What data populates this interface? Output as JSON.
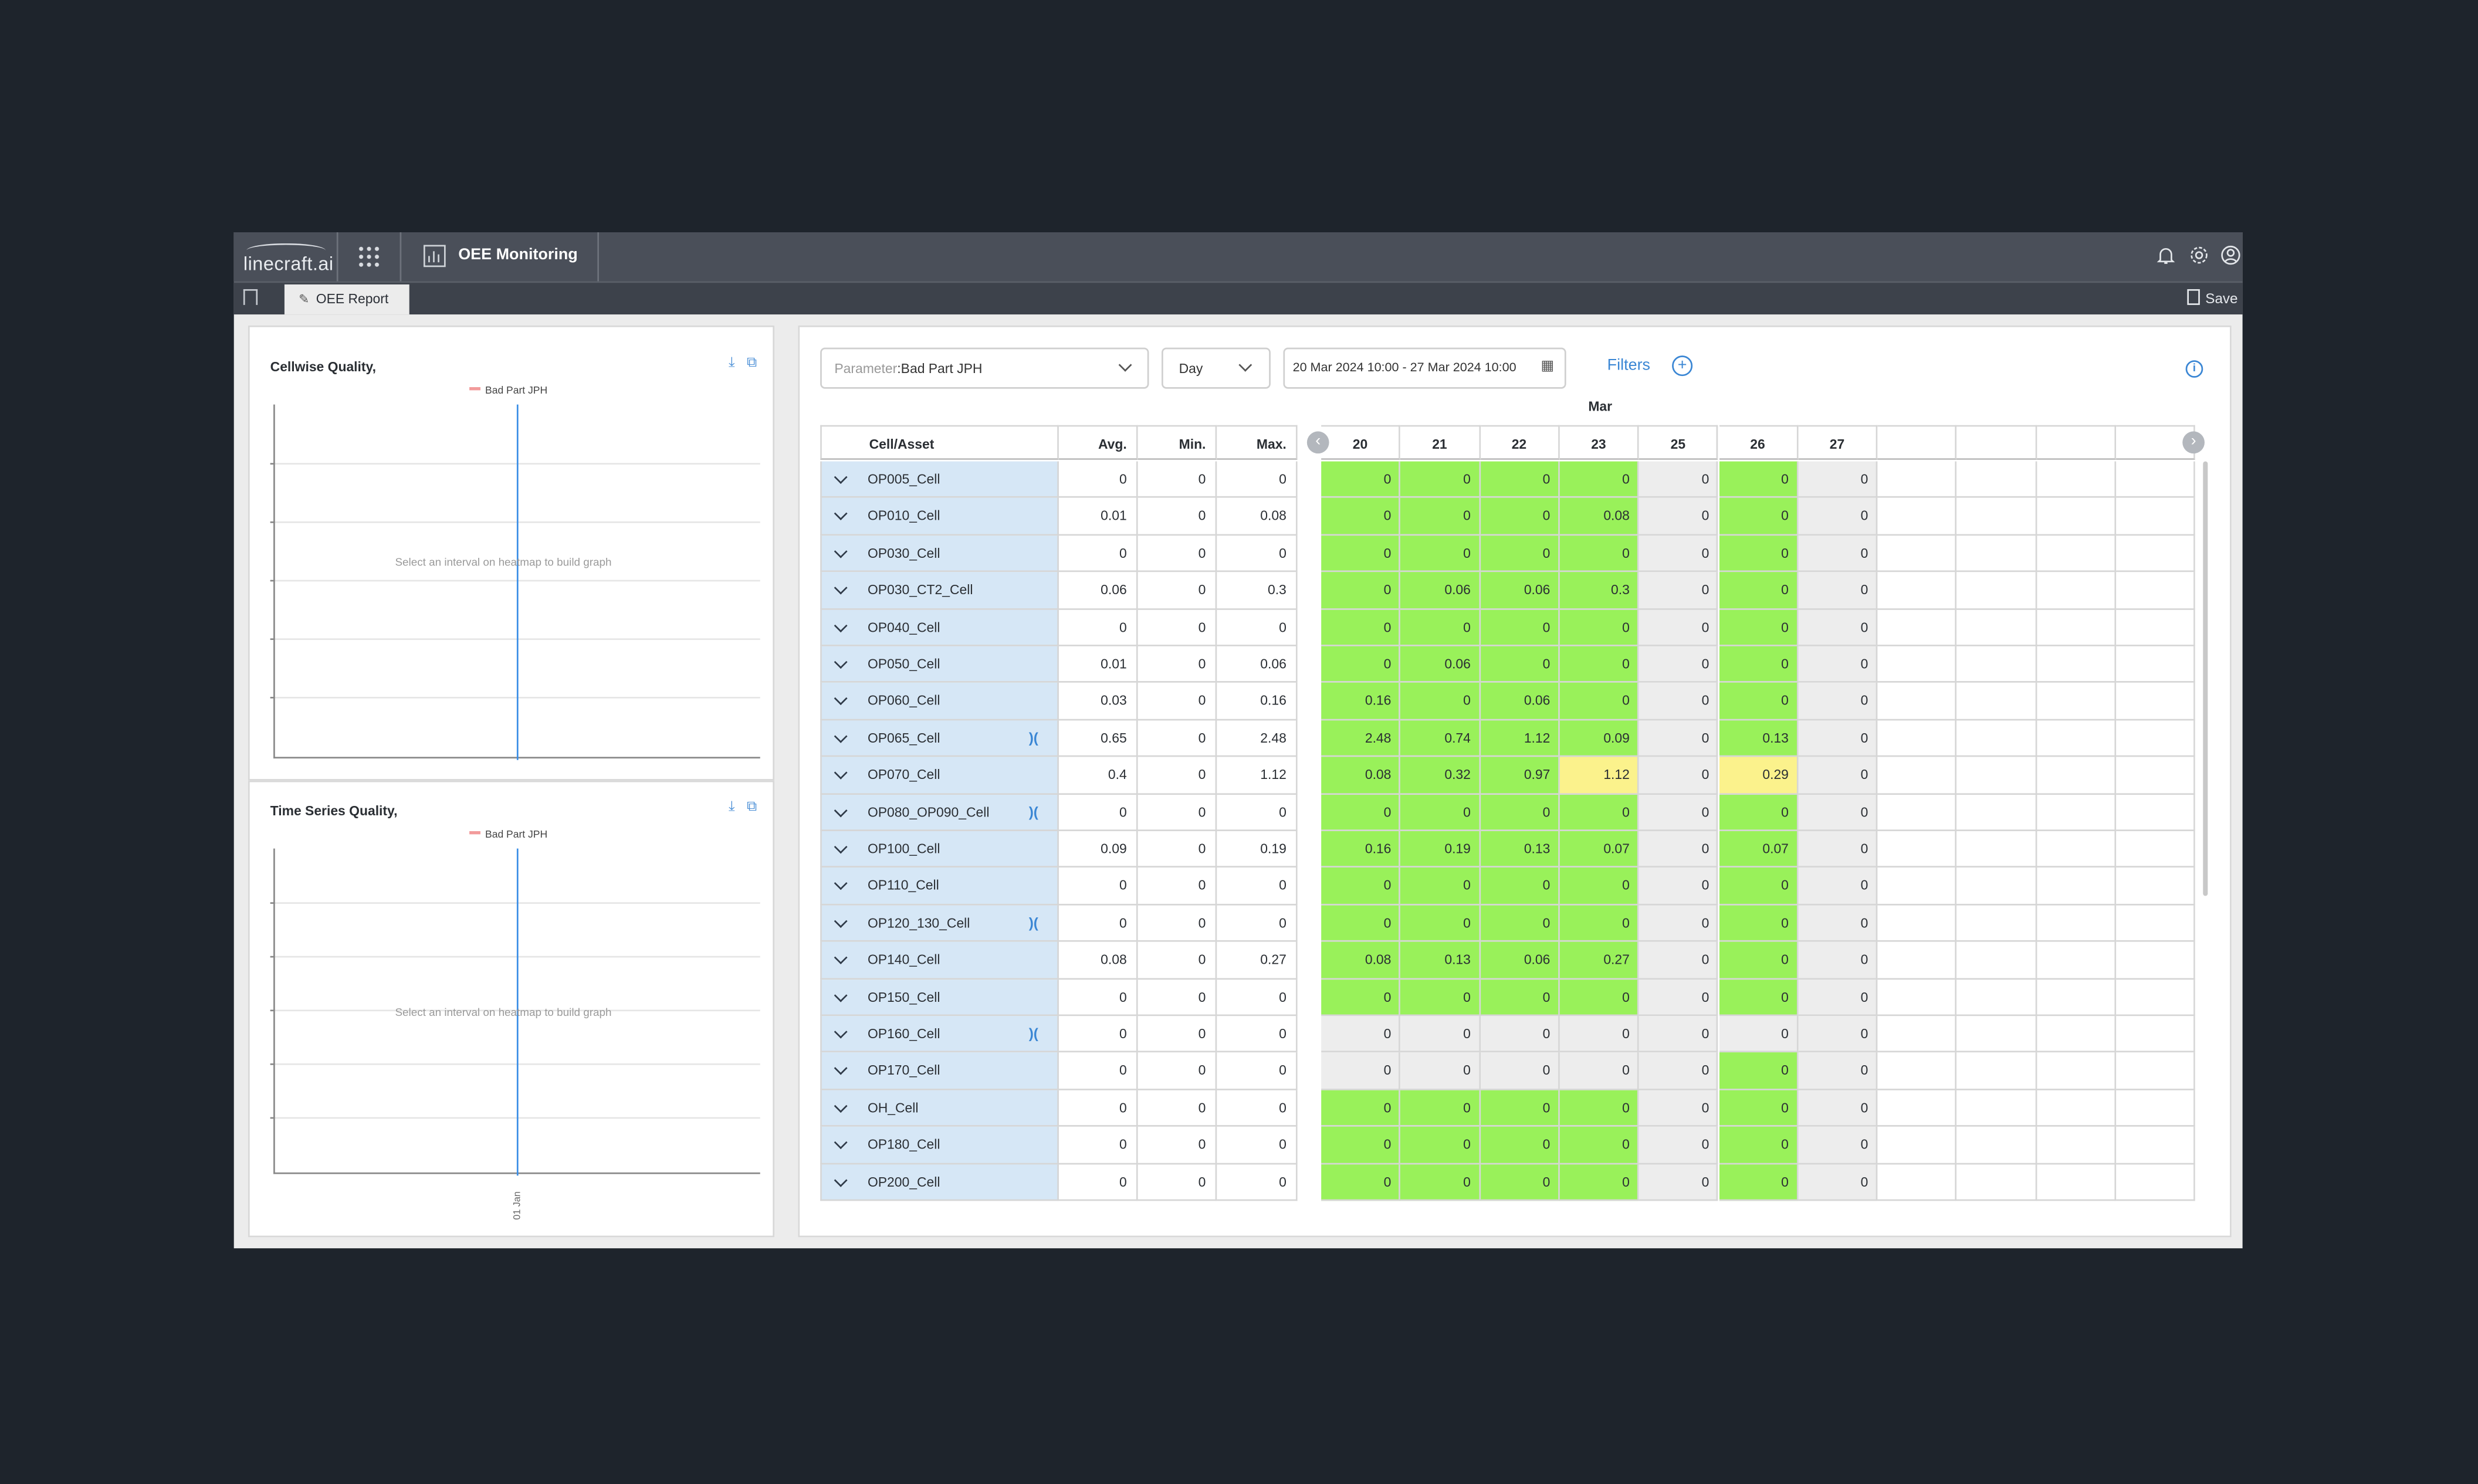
{
  "app": {
    "logo_text": "linecraft.ai",
    "title": "OEE Monitoring",
    "tab_label": "OEE Report",
    "save_label": "Save"
  },
  "left_panels": [
    {
      "title": "Cellwise Quality,",
      "legend": "Bad Part JPH",
      "hint": "Select an interval on heatmap to build graph"
    },
    {
      "title": "Time Series Quality,",
      "legend": "Bad Part JPH",
      "hint": "Select an interval on heatmap to build graph",
      "xtick": "01 Jan"
    }
  ],
  "controls": {
    "parameter_label": "Parameter",
    "parameter_value": "Bad Part JPH",
    "granularity": "Day",
    "date_range": "20 Mar 2024 10:00 - 27 Mar 2024 10:00",
    "filters_label": "Filters",
    "plus": "+",
    "info": "i"
  },
  "table": {
    "month": "Mar",
    "columns": [
      "Cell/Asset",
      "Avg.",
      "Min.",
      "Max."
    ],
    "days": [
      "20",
      "21",
      "22",
      "23",
      "25",
      "26",
      "27",
      "",
      "",
      "",
      ""
    ],
    "rows": [
      {
        "asset": "OP005_Cell",
        "merge": false,
        "avg": "0",
        "min": "0",
        "max": "0",
        "vals": [
          "0",
          "0",
          "0",
          "0",
          "0",
          "0",
          "0"
        ],
        "colors": [
          "g",
          "g",
          "g",
          "g",
          "gr",
          "g",
          "gr"
        ]
      },
      {
        "asset": "OP010_Cell",
        "merge": false,
        "avg": "0.01",
        "min": "0",
        "max": "0.08",
        "vals": [
          "0",
          "0",
          "0",
          "0.08",
          "0",
          "0",
          "0"
        ],
        "colors": [
          "g",
          "g",
          "g",
          "g",
          "gr",
          "g",
          "gr"
        ]
      },
      {
        "asset": "OP030_Cell",
        "merge": false,
        "avg": "0",
        "min": "0",
        "max": "0",
        "vals": [
          "0",
          "0",
          "0",
          "0",
          "0",
          "0",
          "0"
        ],
        "colors": [
          "g",
          "g",
          "g",
          "g",
          "gr",
          "g",
          "gr"
        ]
      },
      {
        "asset": "OP030_CT2_Cell",
        "merge": false,
        "avg": "0.06",
        "min": "0",
        "max": "0.3",
        "vals": [
          "0",
          "0.06",
          "0.06",
          "0.3",
          "0",
          "0",
          "0"
        ],
        "colors": [
          "g",
          "g",
          "g",
          "g",
          "gr",
          "g",
          "gr"
        ]
      },
      {
        "asset": "OP040_Cell",
        "merge": false,
        "avg": "0",
        "min": "0",
        "max": "0",
        "vals": [
          "0",
          "0",
          "0",
          "0",
          "0",
          "0",
          "0"
        ],
        "colors": [
          "g",
          "g",
          "g",
          "g",
          "gr",
          "g",
          "gr"
        ]
      },
      {
        "asset": "OP050_Cell",
        "merge": false,
        "avg": "0.01",
        "min": "0",
        "max": "0.06",
        "vals": [
          "0",
          "0.06",
          "0",
          "0",
          "0",
          "0",
          "0"
        ],
        "colors": [
          "g",
          "g",
          "g",
          "g",
          "gr",
          "g",
          "gr"
        ]
      },
      {
        "asset": "OP060_Cell",
        "merge": false,
        "avg": "0.03",
        "min": "0",
        "max": "0.16",
        "vals": [
          "0.16",
          "0",
          "0.06",
          "0",
          "0",
          "0",
          "0"
        ],
        "colors": [
          "g",
          "g",
          "g",
          "g",
          "gr",
          "g",
          "gr"
        ]
      },
      {
        "asset": "OP065_Cell",
        "merge": true,
        "avg": "0.65",
        "min": "0",
        "max": "2.48",
        "vals": [
          "2.48",
          "0.74",
          "1.12",
          "0.09",
          "0",
          "0.13",
          "0"
        ],
        "colors": [
          "g",
          "g",
          "g",
          "g",
          "gr",
          "g",
          "gr"
        ]
      },
      {
        "asset": "OP070_Cell",
        "merge": false,
        "avg": "0.4",
        "min": "0",
        "max": "1.12",
        "vals": [
          "0.08",
          "0.32",
          "0.97",
          "1.12",
          "0",
          "0.29",
          "0"
        ],
        "colors": [
          "g",
          "g",
          "g",
          "y",
          "gr",
          "y",
          "gr"
        ]
      },
      {
        "asset": "OP080_OP090_Cell",
        "merge": true,
        "avg": "0",
        "min": "0",
        "max": "0",
        "vals": [
          "0",
          "0",
          "0",
          "0",
          "0",
          "0",
          "0"
        ],
        "colors": [
          "g",
          "g",
          "g",
          "g",
          "gr",
          "g",
          "gr"
        ]
      },
      {
        "asset": "OP100_Cell",
        "merge": false,
        "avg": "0.09",
        "min": "0",
        "max": "0.19",
        "vals": [
          "0.16",
          "0.19",
          "0.13",
          "0.07",
          "0",
          "0.07",
          "0"
        ],
        "colors": [
          "g",
          "g",
          "g",
          "g",
          "gr",
          "g",
          "gr"
        ]
      },
      {
        "asset": "OP110_Cell",
        "merge": false,
        "avg": "0",
        "min": "0",
        "max": "0",
        "vals": [
          "0",
          "0",
          "0",
          "0",
          "0",
          "0",
          "0"
        ],
        "colors": [
          "g",
          "g",
          "g",
          "g",
          "gr",
          "g",
          "gr"
        ]
      },
      {
        "asset": "OP120_130_Cell",
        "merge": true,
        "avg": "0",
        "min": "0",
        "max": "0",
        "vals": [
          "0",
          "0",
          "0",
          "0",
          "0",
          "0",
          "0"
        ],
        "colors": [
          "g",
          "g",
          "g",
          "g",
          "gr",
          "g",
          "gr"
        ]
      },
      {
        "asset": "OP140_Cell",
        "merge": false,
        "avg": "0.08",
        "min": "0",
        "max": "0.27",
        "vals": [
          "0.08",
          "0.13",
          "0.06",
          "0.27",
          "0",
          "0",
          "0"
        ],
        "colors": [
          "g",
          "g",
          "g",
          "g",
          "gr",
          "g",
          "gr"
        ]
      },
      {
        "asset": "OP150_Cell",
        "merge": false,
        "avg": "0",
        "min": "0",
        "max": "0",
        "vals": [
          "0",
          "0",
          "0",
          "0",
          "0",
          "0",
          "0"
        ],
        "colors": [
          "g",
          "g",
          "g",
          "g",
          "gr",
          "g",
          "gr"
        ]
      },
      {
        "asset": "OP160_Cell",
        "merge": true,
        "avg": "0",
        "min": "0",
        "max": "0",
        "vals": [
          "0",
          "0",
          "0",
          "0",
          "0",
          "0",
          "0"
        ],
        "colors": [
          "gr",
          "gr",
          "gr",
          "gr",
          "gr",
          "gr",
          "gr"
        ]
      },
      {
        "asset": "OP170_Cell",
        "merge": false,
        "avg": "0",
        "min": "0",
        "max": "0",
        "vals": [
          "0",
          "0",
          "0",
          "0",
          "0",
          "0",
          "0"
        ],
        "colors": [
          "gr",
          "gr",
          "gr",
          "gr",
          "gr",
          "g",
          "gr"
        ]
      },
      {
        "asset": "OH_Cell",
        "merge": false,
        "avg": "0",
        "min": "0",
        "max": "0",
        "vals": [
          "0",
          "0",
          "0",
          "0",
          "0",
          "0",
          "0"
        ],
        "colors": [
          "g",
          "g",
          "g",
          "g",
          "gr",
          "g",
          "gr"
        ]
      },
      {
        "asset": "OP180_Cell",
        "merge": false,
        "avg": "0",
        "min": "0",
        "max": "0",
        "vals": [
          "0",
          "0",
          "0",
          "0",
          "0",
          "0",
          "0"
        ],
        "colors": [
          "g",
          "g",
          "g",
          "g",
          "gr",
          "g",
          "gr"
        ]
      },
      {
        "asset": "OP200_Cell",
        "merge": false,
        "avg": "0",
        "min": "0",
        "max": "0",
        "vals": [
          "0",
          "0",
          "0",
          "0",
          "0",
          "0",
          "0"
        ],
        "colors": [
          "g",
          "g",
          "g",
          "g",
          "gr",
          "g",
          "gr"
        ]
      }
    ]
  },
  "colors": {
    "good": "#99f15a",
    "warn": "#fbf28c",
    "neutral": "#ededed",
    "accent": "#3a86d4"
  }
}
